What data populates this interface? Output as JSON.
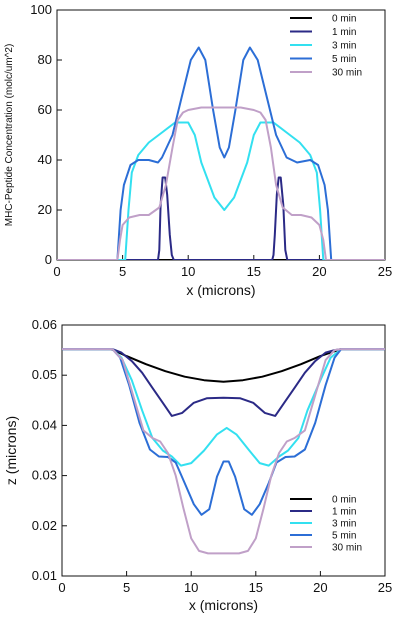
{
  "chart_data": [
    {
      "type": "line",
      "title": "",
      "xlabel": "x (microns)",
      "ylabel": "MHC-Peptide Concentration (molc/um^2)",
      "xlim": [
        0,
        25
      ],
      "ylim": [
        0,
        100
      ],
      "xticks": [
        "0",
        "5",
        "10",
        "15",
        "20",
        "25"
      ],
      "yticks": [
        "0",
        "20",
        "40",
        "60",
        "80",
        "100"
      ],
      "grid": false,
      "legend_position": "top-right",
      "series": [
        {
          "name": "0 min",
          "color": "#000000",
          "x": [
            0,
            25
          ],
          "y": [
            0,
            0
          ]
        },
        {
          "name": "1 min",
          "color": "#2b2a86",
          "x": [
            0,
            7.7,
            7.8,
            7.9,
            8.05,
            8.25,
            8.4,
            8.6,
            8.75,
            8.9,
            9.0,
            16.4,
            16.5,
            16.6,
            16.75,
            16.9,
            17.05,
            17.25,
            17.4,
            17.55,
            25
          ],
          "y": [
            0,
            0,
            4,
            22,
            33,
            33,
            26,
            10,
            2,
            0,
            0,
            0,
            2,
            10,
            26,
            33,
            33,
            22,
            4,
            0,
            0
          ]
        },
        {
          "name": "3 min",
          "color": "#33e0f0",
          "x": [
            0,
            5.2,
            5.45,
            5.7,
            6.2,
            7.0,
            8.0,
            9.0,
            10.0,
            10.5,
            11.0,
            12.0,
            12.75,
            13.5,
            14.5,
            15.0,
            15.5,
            16.5,
            17.5,
            18.5,
            19.3,
            19.8,
            20.05,
            20.3,
            25
          ],
          "y": [
            0,
            0,
            20,
            35,
            42,
            47,
            51,
            55,
            55,
            50,
            39,
            25,
            20,
            25,
            39,
            50,
            55,
            55,
            51,
            47,
            42,
            35,
            20,
            0,
            0
          ]
        },
        {
          "name": "5 min",
          "color": "#2c6ed6",
          "x": [
            0,
            4.6,
            4.85,
            5.1,
            5.6,
            6.2,
            7.0,
            7.7,
            8.0,
            8.8,
            9.5,
            10.2,
            10.8,
            11.3,
            11.9,
            12.4,
            12.75,
            13.1,
            13.6,
            14.2,
            14.7,
            15.3,
            16.0,
            16.7,
            17.5,
            18.3,
            19.3,
            19.9,
            20.4,
            20.65,
            20.9,
            25
          ],
          "y": [
            0,
            0,
            20,
            30,
            38,
            40,
            40,
            39,
            41,
            50,
            65,
            80,
            85,
            80,
            60,
            45,
            41,
            45,
            60,
            80,
            85,
            80,
            65,
            50,
            41,
            39,
            40,
            38,
            30,
            20,
            0,
            0
          ]
        },
        {
          "name": "30 min",
          "color": "#c0a0c8",
          "x": [
            0,
            4.6,
            4.8,
            5.0,
            5.5,
            6.3,
            7.0,
            7.8,
            8.3,
            8.8,
            9.2,
            9.6,
            10.0,
            11.0,
            12.5,
            14.0,
            15.0,
            15.5,
            15.9,
            16.3,
            16.7,
            17.2,
            17.9,
            18.6,
            19.4,
            20.0,
            20.3,
            20.5,
            25
          ],
          "y": [
            0,
            0,
            8,
            14,
            17,
            18,
            18,
            21,
            30,
            45,
            56,
            59,
            60,
            61,
            61,
            61,
            60,
            59,
            56,
            45,
            30,
            21,
            18,
            18,
            17,
            14,
            8,
            0,
            0
          ]
        }
      ]
    },
    {
      "type": "line",
      "title": "",
      "xlabel": "x (microns)",
      "ylabel": "z (microns)",
      "xlim": [
        0,
        25
      ],
      "ylim": [
        0.01,
        0.06
      ],
      "xticks": [
        "0",
        "5",
        "10",
        "15",
        "20",
        "25"
      ],
      "yticks": [
        "0.01",
        "0.02",
        "0.03",
        "0.04",
        "0.05",
        "0.06"
      ],
      "grid": false,
      "legend_position": "bottom-right",
      "series": [
        {
          "name": "0 min",
          "color": "#000000",
          "x": [
            0,
            3.8,
            5.0,
            6.5,
            8.0,
            9.5,
            11.0,
            12.5,
            14.0,
            15.5,
            17.0,
            18.5,
            20.0,
            21.6,
            25
          ],
          "y": [
            0.0552,
            0.0552,
            0.0538,
            0.0522,
            0.0508,
            0.0497,
            0.049,
            0.0487,
            0.049,
            0.0497,
            0.0508,
            0.0522,
            0.0538,
            0.0552,
            0.0552
          ]
        },
        {
          "name": "1 min",
          "color": "#2b2a86",
          "x": [
            0,
            3.9,
            4.6,
            5.4,
            6.2,
            7.0,
            7.8,
            8.5,
            9.3,
            10.2,
            11.2,
            12.5,
            13.8,
            14.8,
            15.7,
            16.5,
            17.2,
            18.0,
            18.8,
            19.6,
            20.4,
            21.1,
            21.6,
            25
          ],
          "y": [
            0.0552,
            0.0552,
            0.0545,
            0.0528,
            0.0505,
            0.0475,
            0.0445,
            0.0419,
            0.0425,
            0.0445,
            0.0454,
            0.0455,
            0.0454,
            0.0445,
            0.0425,
            0.0419,
            0.0445,
            0.0475,
            0.0505,
            0.0528,
            0.0545,
            0.055,
            0.0552,
            0.0552
          ]
        },
        {
          "name": "3 min",
          "color": "#33e0f0",
          "x": [
            0,
            3.9,
            4.6,
            5.4,
            6.2,
            7.0,
            7.8,
            8.5,
            9.2,
            10.0,
            11.0,
            12.0,
            12.75,
            13.5,
            14.5,
            15.3,
            16.0,
            16.8,
            17.5,
            18.3,
            19.0,
            20.0,
            20.8,
            21.6,
            25
          ],
          "y": [
            0.0552,
            0.0552,
            0.0535,
            0.049,
            0.043,
            0.0375,
            0.035,
            0.0338,
            0.032,
            0.0325,
            0.035,
            0.0382,
            0.0395,
            0.0382,
            0.035,
            0.0325,
            0.032,
            0.0338,
            0.035,
            0.0375,
            0.043,
            0.049,
            0.0535,
            0.0552,
            0.0552
          ]
        },
        {
          "name": "5 min",
          "color": "#2c6ed6",
          "x": [
            0,
            3.9,
            4.5,
            5.2,
            6.0,
            6.8,
            7.5,
            8.2,
            8.8,
            9.5,
            10.2,
            10.8,
            11.4,
            12.0,
            12.5,
            12.9,
            13.4,
            14.1,
            14.7,
            15.3,
            16.0,
            16.6,
            17.3,
            18.0,
            18.8,
            19.6,
            20.4,
            21.1,
            21.6,
            25
          ],
          "y": [
            0.0552,
            0.0552,
            0.0535,
            0.048,
            0.0405,
            0.0352,
            0.0338,
            0.0337,
            0.0326,
            0.0285,
            0.0243,
            0.0222,
            0.0233,
            0.0298,
            0.0328,
            0.0328,
            0.0298,
            0.0233,
            0.0222,
            0.0243,
            0.0285,
            0.0326,
            0.0337,
            0.0338,
            0.0352,
            0.0405,
            0.048,
            0.0535,
            0.0552,
            0.0552
          ]
        },
        {
          "name": "30 min",
          "color": "#c0a0c8",
          "x": [
            0,
            3.9,
            4.7,
            5.5,
            6.3,
            7.0,
            7.6,
            8.2,
            8.8,
            9.4,
            10.0,
            10.6,
            11.3,
            12.5,
            13.7,
            14.4,
            15.0,
            15.6,
            16.2,
            16.8,
            17.4,
            18.0,
            18.8,
            19.6,
            20.4,
            21.1,
            21.6,
            25
          ],
          "y": [
            0.0552,
            0.0552,
            0.053,
            0.046,
            0.039,
            0.0375,
            0.0368,
            0.0345,
            0.03,
            0.0235,
            0.0175,
            0.015,
            0.0145,
            0.0145,
            0.0145,
            0.015,
            0.0175,
            0.0235,
            0.03,
            0.0345,
            0.0368,
            0.0375,
            0.039,
            0.046,
            0.053,
            0.055,
            0.0552,
            0.0552
          ]
        }
      ]
    }
  ]
}
